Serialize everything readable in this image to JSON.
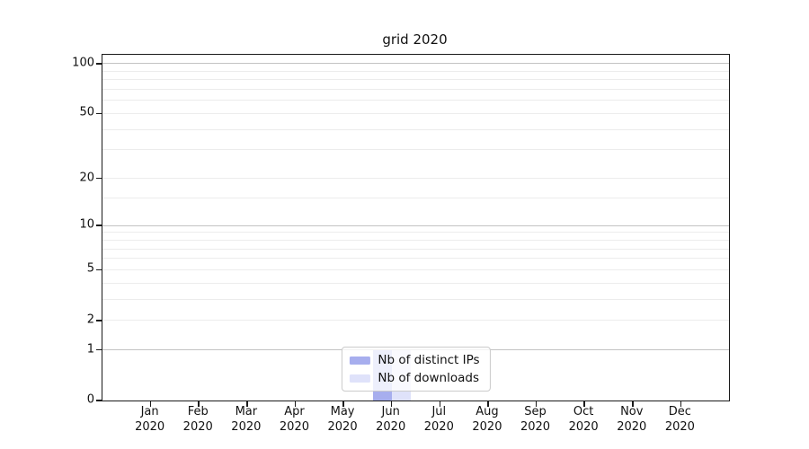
{
  "chart_data": {
    "type": "bar",
    "title": "grid 2020",
    "x": {
      "categories": [
        "Jan",
        "Feb",
        "Mar",
        "Apr",
        "May",
        "Jun",
        "Jul",
        "Aug",
        "Sep",
        "Oct",
        "Nov",
        "Dec"
      ],
      "year_line": "2020"
    },
    "series": [
      {
        "name": "Nb of distinct IPs",
        "color": "#a7aeee",
        "values": [
          0,
          0,
          0,
          0,
          0,
          1,
          0,
          0,
          0,
          0,
          0,
          0
        ]
      },
      {
        "name": "Nb of downloads",
        "color": "#dfe2fa",
        "values": [
          0,
          0,
          0,
          0,
          0,
          1,
          0,
          0,
          0,
          0,
          0,
          0
        ]
      }
    ],
    "y_axis": {
      "scale": "symlog",
      "tick_labels": [
        "0",
        "1",
        "2",
        "5",
        "10",
        "20",
        "50",
        "100"
      ],
      "tick_values": [
        0,
        1,
        2,
        5,
        10,
        20,
        50,
        100
      ],
      "major_grid_values": [
        1,
        10,
        100
      ],
      "minor_grid_values": [
        2,
        3,
        4,
        5,
        6,
        7,
        8,
        9,
        15,
        20,
        30,
        40,
        50,
        60,
        70,
        80,
        90
      ],
      "range": [
        0,
        113
      ]
    },
    "grid": true,
    "legend": {
      "position": "lower-center",
      "entries": [
        "Nb of distinct IPs",
        "Nb of downloads"
      ]
    },
    "colors": {
      "axis": "#1a1a1a",
      "major_grid": "#c3c3c3",
      "minor_grid": "#ececec"
    }
  }
}
